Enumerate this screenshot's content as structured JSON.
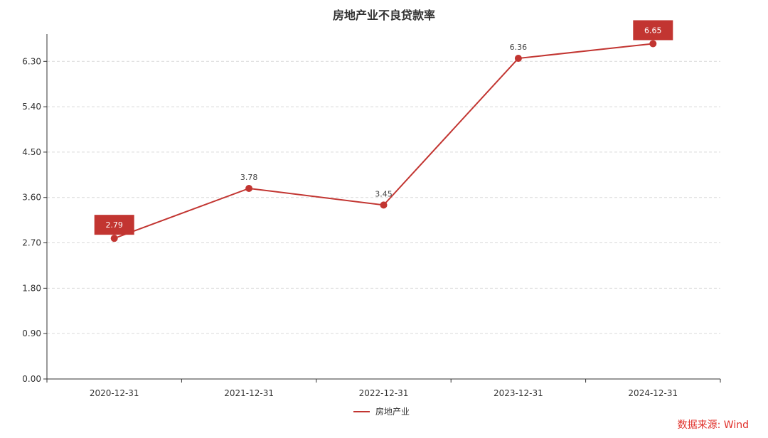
{
  "chart_data": {
    "type": "line",
    "title": "房地产业不良贷款率",
    "categories": [
      "2020-12-31",
      "2021-12-31",
      "2022-12-31",
      "2023-12-31",
      "2024-12-31"
    ],
    "series": [
      {
        "name": "房地产业",
        "values": [
          2.79,
          3.78,
          3.45,
          6.36,
          6.65
        ],
        "color": "#c23531"
      }
    ],
    "yticks": [
      "0.00",
      "0.90",
      "1.80",
      "2.70",
      "3.60",
      "4.50",
      "5.40",
      "6.30"
    ],
    "ylim": [
      0,
      6.84
    ],
    "highlighted": [
      "2.79",
      "6.65"
    ],
    "point_labels": [
      "2.79",
      "3.78",
      "3.45",
      "6.36",
      "6.65"
    ],
    "grid": true,
    "legend_position": "bottom-center"
  },
  "source": "数据来源: Wind"
}
